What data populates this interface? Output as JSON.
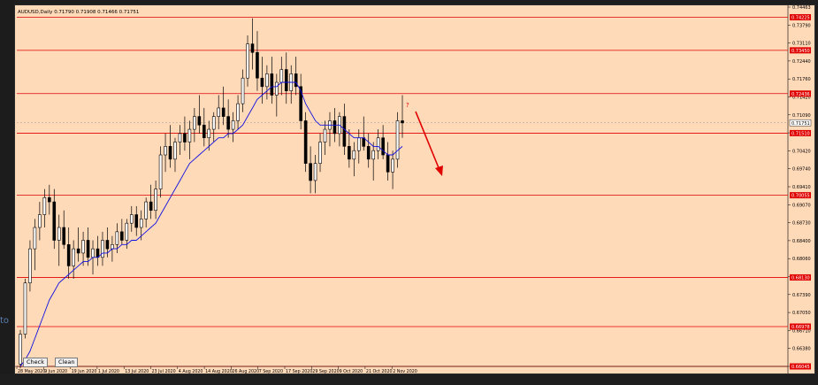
{
  "window": {
    "title": "AUDUSD,Daily  0.71790 0.71908 0.71466 0.71751",
    "left_edge_text": "to"
  },
  "buttons": {
    "check_label": "Check",
    "clean_label": "Clean"
  },
  "annotation": {
    "question_mark": "?",
    "arrow_direction": "down"
  },
  "colors": {
    "background": "#ffdab9",
    "candle": "#000000",
    "moving_average": "#1010e0",
    "level_line": "#e00000",
    "arrow": "#e00000",
    "price_tag": "#e00000"
  },
  "price_axis": {
    "min": 0.66045,
    "max": 0.74463,
    "tick_labels": [
      "0.74463",
      "0.73790",
      "0.73110",
      "0.72440",
      "0.71760",
      "0.71420",
      "0.71090",
      "0.70750",
      "0.70420",
      "0.69740",
      "0.69410",
      "0.69070",
      "0.68730",
      "0.68400",
      "0.68060",
      "0.67720",
      "0.67390",
      "0.67050",
      "0.66710",
      "0.66380",
      "0.66045"
    ],
    "current_price_label": "0.71751"
  },
  "levels": [
    {
      "price": 0.74225,
      "label": "0.74225",
      "color": "#e00000"
    },
    {
      "price": 0.7345,
      "label": "0.73450",
      "color": "#e00000"
    },
    {
      "price": 0.72436,
      "label": "0.72436",
      "color": "#e00000"
    },
    {
      "price": 0.7151,
      "label": "0.71510",
      "color": "#e00000"
    },
    {
      "price": 0.70055,
      "label": "0.70055",
      "color": "#e00000"
    },
    {
      "price": 0.6813,
      "label": "0.68130",
      "color": "#e00000"
    },
    {
      "price": 0.66978,
      "label": "0.66978",
      "color": "#e00000"
    },
    {
      "price": 0.66045,
      "label": "0.66045",
      "color": "#e00000"
    }
  ],
  "time_axis": {
    "labels": [
      "28 May 2020",
      "9 Jun 2020",
      "19 Jun 2020",
      "1 Jul 2020",
      "13 Jul 2020",
      "23 Jul 2020",
      "4 Aug 2020",
      "14 Aug 2020",
      "26 Aug 2020",
      "7 Sep 2020",
      "17 Sep 2020",
      "29 Sep 2020",
      "9 Oct 2020",
      "21 Oct 2020",
      "2 Nov 2020"
    ]
  },
  "chart_data": {
    "type": "candlestick",
    "symbol": "AUDUSD",
    "timeframe": "Daily",
    "candles": [
      [
        0.661,
        0.669,
        0.66,
        0.668
      ],
      [
        0.668,
        0.681,
        0.667,
        0.68
      ],
      [
        0.68,
        0.69,
        0.678,
        0.688
      ],
      [
        0.688,
        0.695,
        0.683,
        0.693
      ],
      [
        0.693,
        0.699,
        0.69,
        0.696
      ],
      [
        0.696,
        0.702,
        0.693,
        0.7
      ],
      [
        0.7,
        0.703,
        0.696,
        0.699
      ],
      [
        0.699,
        0.702,
        0.688,
        0.69
      ],
      [
        0.69,
        0.696,
        0.684,
        0.693
      ],
      [
        0.693,
        0.697,
        0.688,
        0.689
      ],
      [
        0.689,
        0.693,
        0.681,
        0.684
      ],
      [
        0.684,
        0.69,
        0.681,
        0.688
      ],
      [
        0.688,
        0.693,
        0.685,
        0.687
      ],
      [
        0.687,
        0.692,
        0.684,
        0.69
      ],
      [
        0.69,
        0.693,
        0.684,
        0.686
      ],
      [
        0.686,
        0.69,
        0.682,
        0.688
      ],
      [
        0.688,
        0.691,
        0.684,
        0.686
      ],
      [
        0.686,
        0.692,
        0.684,
        0.69
      ],
      [
        0.69,
        0.693,
        0.686,
        0.688
      ],
      [
        0.688,
        0.691,
        0.685,
        0.689
      ],
      [
        0.689,
        0.694,
        0.687,
        0.692
      ],
      [
        0.692,
        0.695,
        0.689,
        0.69
      ],
      [
        0.69,
        0.695,
        0.688,
        0.694
      ],
      [
        0.694,
        0.698,
        0.692,
        0.696
      ],
      [
        0.696,
        0.698,
        0.691,
        0.693
      ],
      [
        0.693,
        0.697,
        0.69,
        0.695
      ],
      [
        0.695,
        0.7,
        0.693,
        0.699
      ],
      [
        0.699,
        0.703,
        0.695,
        0.697
      ],
      [
        0.697,
        0.704,
        0.695,
        0.702
      ],
      [
        0.702,
        0.712,
        0.7,
        0.71
      ],
      [
        0.71,
        0.715,
        0.706,
        0.712
      ],
      [
        0.712,
        0.717,
        0.707,
        0.709
      ],
      [
        0.709,
        0.714,
        0.706,
        0.713
      ],
      [
        0.713,
        0.717,
        0.71,
        0.715
      ],
      [
        0.715,
        0.719,
        0.711,
        0.713
      ],
      [
        0.713,
        0.718,
        0.709,
        0.716
      ],
      [
        0.716,
        0.721,
        0.713,
        0.719
      ],
      [
        0.719,
        0.724,
        0.715,
        0.717
      ],
      [
        0.717,
        0.721,
        0.712,
        0.714
      ],
      [
        0.714,
        0.718,
        0.711,
        0.716
      ],
      [
        0.716,
        0.72,
        0.713,
        0.719
      ],
      [
        0.719,
        0.724,
        0.716,
        0.721
      ],
      [
        0.721,
        0.726,
        0.717,
        0.719
      ],
      [
        0.719,
        0.723,
        0.714,
        0.716
      ],
      [
        0.716,
        0.72,
        0.713,
        0.718
      ],
      [
        0.718,
        0.724,
        0.716,
        0.722
      ],
      [
        0.722,
        0.73,
        0.72,
        0.728
      ],
      [
        0.728,
        0.738,
        0.726,
        0.736
      ],
      [
        0.736,
        0.742,
        0.73,
        0.734
      ],
      [
        0.734,
        0.739,
        0.725,
        0.728
      ],
      [
        0.728,
        0.733,
        0.722,
        0.726
      ],
      [
        0.726,
        0.731,
        0.723,
        0.729
      ],
      [
        0.729,
        0.733,
        0.722,
        0.724
      ],
      [
        0.724,
        0.729,
        0.719,
        0.727
      ],
      [
        0.727,
        0.733,
        0.724,
        0.73
      ],
      [
        0.73,
        0.734,
        0.722,
        0.725
      ],
      [
        0.725,
        0.731,
        0.722,
        0.729
      ],
      [
        0.729,
        0.733,
        0.724,
        0.726
      ],
      [
        0.726,
        0.729,
        0.716,
        0.718
      ],
      [
        0.718,
        0.72,
        0.706,
        0.708
      ],
      [
        0.708,
        0.712,
        0.701,
        0.704
      ],
      [
        0.704,
        0.71,
        0.701,
        0.708
      ],
      [
        0.708,
        0.715,
        0.706,
        0.713
      ],
      [
        0.713,
        0.718,
        0.71,
        0.716
      ],
      [
        0.716,
        0.72,
        0.712,
        0.718
      ],
      [
        0.718,
        0.721,
        0.713,
        0.715
      ],
      [
        0.715,
        0.72,
        0.712,
        0.719
      ],
      [
        0.719,
        0.722,
        0.71,
        0.712
      ],
      [
        0.712,
        0.716,
        0.707,
        0.709
      ],
      [
        0.709,
        0.713,
        0.705,
        0.711
      ],
      [
        0.711,
        0.716,
        0.708,
        0.714
      ],
      [
        0.714,
        0.719,
        0.711,
        0.712
      ],
      [
        0.712,
        0.715,
        0.707,
        0.709
      ],
      [
        0.709,
        0.713,
        0.704,
        0.711
      ],
      [
        0.711,
        0.716,
        0.709,
        0.714
      ],
      [
        0.714,
        0.717,
        0.709,
        0.71
      ],
      [
        0.71,
        0.713,
        0.704,
        0.706
      ],
      [
        0.706,
        0.711,
        0.702,
        0.709
      ],
      [
        0.709,
        0.72,
        0.707,
        0.718
      ],
      [
        0.718,
        0.724,
        0.714,
        0.7175
      ]
    ],
    "ma_values": [
      0.6605,
      0.662,
      0.664,
      0.667,
      0.67,
      0.673,
      0.676,
      0.678,
      0.68,
      0.681,
      0.682,
      0.683,
      0.684,
      0.685,
      0.685,
      0.686,
      0.686,
      0.687,
      0.687,
      0.688,
      0.688,
      0.689,
      0.689,
      0.69,
      0.69,
      0.691,
      0.692,
      0.693,
      0.694,
      0.696,
      0.698,
      0.7,
      0.702,
      0.704,
      0.706,
      0.708,
      0.709,
      0.71,
      0.711,
      0.712,
      0.713,
      0.714,
      0.714,
      0.715,
      0.715,
      0.716,
      0.717,
      0.719,
      0.721,
      0.723,
      0.724,
      0.725,
      0.726,
      0.726,
      0.727,
      0.727,
      0.727,
      0.727,
      0.725,
      0.722,
      0.72,
      0.718,
      0.717,
      0.717,
      0.717,
      0.717,
      0.717,
      0.716,
      0.715,
      0.714,
      0.714,
      0.714,
      0.713,
      0.712,
      0.712,
      0.711,
      0.71,
      0.71,
      0.711,
      0.712
    ],
    "ylim": [
      0.66045,
      0.74463
    ]
  }
}
